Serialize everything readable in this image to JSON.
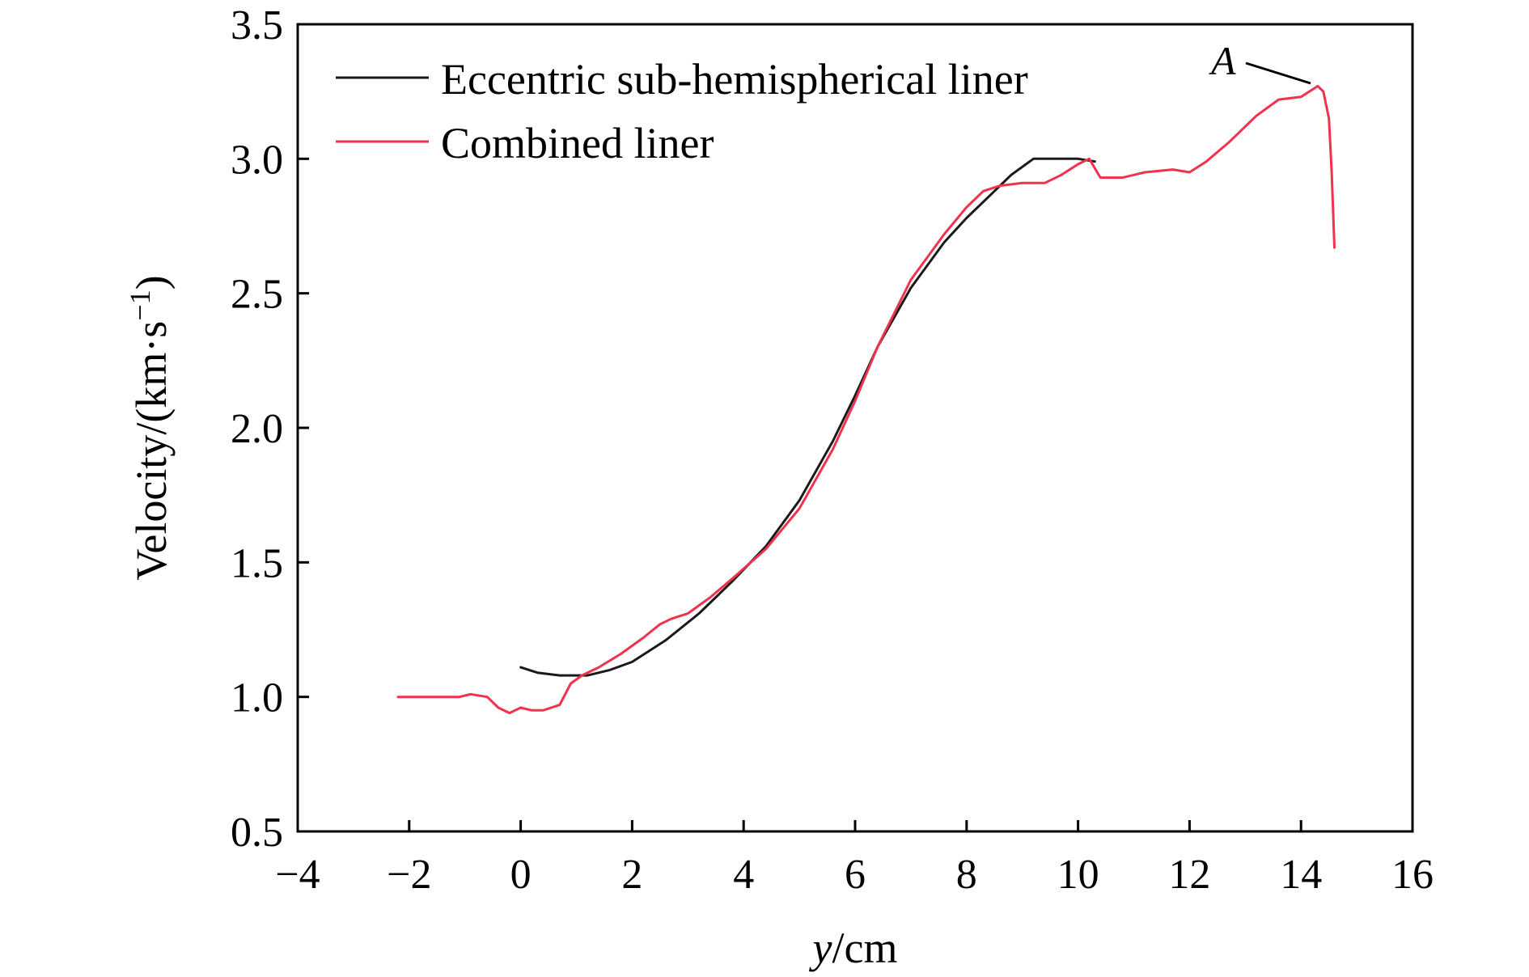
{
  "chart_data": {
    "type": "line",
    "xlabel_var": "y",
    "xlabel_unit": "/cm",
    "ylabel": "Velocity/(km·s",
    "ylabel_sup": "−1",
    "ylabel_close": ")",
    "xlim": [
      -4,
      16
    ],
    "ylim": [
      0.5,
      3.5
    ],
    "xticks": [
      -4,
      -2,
      0,
      2,
      4,
      6,
      8,
      10,
      12,
      14,
      16
    ],
    "xtick_labels": [
      "−4",
      "−2",
      "0",
      "2",
      "4",
      "6",
      "8",
      "10",
      "12",
      "14",
      "16"
    ],
    "yticks": [
      0.5,
      1.0,
      1.5,
      2.0,
      2.5,
      3.0,
      3.5
    ],
    "ytick_labels": [
      "0.5",
      "1.0",
      "1.5",
      "2.0",
      "2.5",
      "3.0",
      "3.5"
    ],
    "grid": false,
    "legend_position": "top-left",
    "series": [
      {
        "name": "Eccentric sub-hemispherical liner",
        "color": "#1a1a1a",
        "x": [
          0.0,
          0.3,
          0.7,
          1.2,
          1.6,
          2.0,
          2.6,
          3.2,
          3.8,
          4.4,
          5.0,
          5.6,
          6.0,
          6.4,
          7.0,
          7.6,
          8.0,
          8.4,
          8.8,
          9.2,
          9.6,
          10.0,
          10.3
        ],
        "y": [
          1.11,
          1.09,
          1.08,
          1.08,
          1.1,
          1.13,
          1.21,
          1.31,
          1.43,
          1.56,
          1.73,
          1.95,
          2.12,
          2.3,
          2.52,
          2.69,
          2.78,
          2.86,
          2.94,
          3.0,
          3.0,
          3.0,
          2.99
        ]
      },
      {
        "name": "Combined liner",
        "color": "#f0324f",
        "x": [
          -2.2,
          -1.6,
          -1.1,
          -0.9,
          -0.6,
          -0.4,
          -0.2,
          0.0,
          0.2,
          0.4,
          0.7,
          0.9,
          1.1,
          1.4,
          1.8,
          2.2,
          2.5,
          2.7,
          3.0,
          3.4,
          3.8,
          4.4,
          5.0,
          5.6,
          6.0,
          6.4,
          7.0,
          7.6,
          8.0,
          8.3,
          8.6,
          9.0,
          9.4,
          9.7,
          10.0,
          10.2,
          10.4,
          10.8,
          11.2,
          11.7,
          12.0,
          12.3,
          12.7,
          13.2,
          13.6,
          14.0,
          14.3,
          14.4,
          14.5,
          14.55,
          14.6
        ],
        "y": [
          1.0,
          1.0,
          1.0,
          1.01,
          1.0,
          0.96,
          0.94,
          0.96,
          0.95,
          0.95,
          0.97,
          1.05,
          1.08,
          1.11,
          1.16,
          1.22,
          1.27,
          1.29,
          1.31,
          1.37,
          1.44,
          1.55,
          1.7,
          1.92,
          2.1,
          2.3,
          2.55,
          2.72,
          2.82,
          2.88,
          2.9,
          2.91,
          2.91,
          2.94,
          2.98,
          3.0,
          2.93,
          2.93,
          2.95,
          2.96,
          2.95,
          2.99,
          3.06,
          3.16,
          3.22,
          3.23,
          3.27,
          3.25,
          3.15,
          2.95,
          2.67
        ]
      }
    ],
    "annotations": [
      {
        "text": "A",
        "x": 14.3,
        "y": 3.28
      }
    ]
  }
}
